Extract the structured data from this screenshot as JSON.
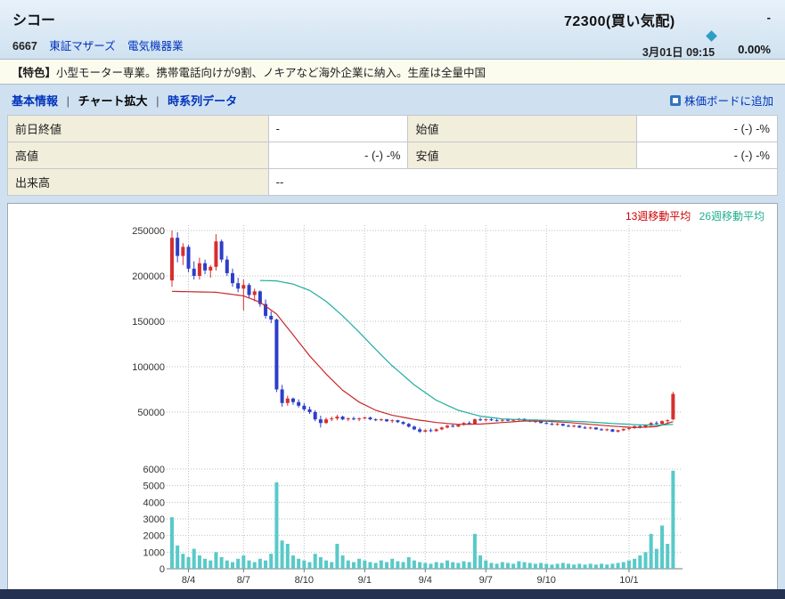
{
  "header": {
    "name": "シコー",
    "code": "6667",
    "market": "東証マザーズ",
    "industry": "電気機器業",
    "price": "72300(買い気配)",
    "change": "-",
    "datetime": "3月01日 09:15",
    "change_percent": "0.00%",
    "quote_marker_color": "#2e9ec4"
  },
  "feature": {
    "label": "【特色】",
    "text": "小型モーター専業。携帯電話向けが9割、ノキアなど海外企業に納入。生産は全量中国"
  },
  "tab_separator": "|",
  "tabs": [
    {
      "label": "基本情報",
      "active": false
    },
    {
      "label": "チャート拡大",
      "active": true
    },
    {
      "label": "時系列データ",
      "active": false
    }
  ],
  "add_board_label": "株価ボードに追加",
  "quote_table": {
    "rows": {
      "r1": {
        "label1": "前日終値",
        "value1": "-",
        "label2": "始値",
        "value2": "- (-) -%"
      },
      "r2": {
        "label1": "高値",
        "value1": "- (-) -%",
        "label2": "安値",
        "value2": "- (-) -%"
      },
      "r3": {
        "label1": "出来高",
        "value1": "--"
      }
    }
  },
  "chart_data": {
    "type": "candlestick_with_volume",
    "period": "weekly",
    "legend": [
      {
        "label": "13週移動平均",
        "color": "#cc0000"
      },
      {
        "label": "26週移動平均",
        "color": "#1fae8e"
      }
    ],
    "price_axis": {
      "ticks": [
        250000,
        200000,
        150000,
        100000,
        50000
      ],
      "top_value": 250000,
      "unit_per_tick": 50000
    },
    "volume_axis": {
      "ticks": [
        6000,
        5000,
        4000,
        3000,
        2000,
        1000,
        0
      ],
      "max": 6000
    },
    "x_ticks": [
      {
        "index": 3,
        "label": "8/4"
      },
      {
        "index": 13,
        "label": "8/7"
      },
      {
        "index": 24,
        "label": "8/10"
      },
      {
        "index": 35,
        "label": "9/1"
      },
      {
        "index": 46,
        "label": "9/4"
      },
      {
        "index": 57,
        "label": "9/7"
      },
      {
        "index": 68,
        "label": "9/10"
      },
      {
        "index": 83,
        "label": "10/1"
      }
    ],
    "colors": {
      "up": "#d62f2f",
      "down": "#2c3ec8",
      "ma13": "#c62828",
      "ma26": "#1fae9e",
      "volume": "#59c9c9",
      "grid": "#b9bec4",
      "axis": "#777777"
    },
    "candles": [
      [
        195000,
        250000,
        188000,
        242000,
        3100
      ],
      [
        242000,
        248000,
        215000,
        222000,
        1400
      ],
      [
        222000,
        236000,
        212000,
        232000,
        900
      ],
      [
        232000,
        234000,
        204000,
        208000,
        700
      ],
      [
        208000,
        216000,
        196000,
        200000,
        1200
      ],
      [
        200000,
        220000,
        196000,
        214000,
        800
      ],
      [
        214000,
        218000,
        202000,
        206000,
        600
      ],
      [
        206000,
        212000,
        198000,
        210000,
        500
      ],
      [
        210000,
        246000,
        206000,
        238000,
        1000
      ],
      [
        238000,
        240000,
        215000,
        218000,
        700
      ],
      [
        218000,
        222000,
        200000,
        203000,
        500
      ],
      [
        203000,
        208000,
        188000,
        192000,
        400
      ],
      [
        192000,
        198000,
        182000,
        186000,
        600
      ],
      [
        186000,
        196000,
        162000,
        190000,
        800
      ],
      [
        190000,
        192000,
        176000,
        179000,
        500
      ],
      [
        179000,
        186000,
        172000,
        183000,
        400
      ],
      [
        183000,
        184000,
        166000,
        169000,
        600
      ],
      [
        169000,
        174000,
        153000,
        156000,
        500
      ],
      [
        156000,
        161000,
        148000,
        152000,
        900
      ],
      [
        152000,
        153000,
        72000,
        75000,
        5200
      ],
      [
        75000,
        80000,
        56000,
        60000,
        1700
      ],
      [
        60000,
        68000,
        57000,
        65000,
        1500
      ],
      [
        65000,
        66000,
        58000,
        61000,
        800
      ],
      [
        61000,
        64000,
        55000,
        57000,
        600
      ],
      [
        57000,
        60000,
        51000,
        53000,
        500
      ],
      [
        53000,
        56000,
        48000,
        50000,
        400
      ],
      [
        50000,
        52000,
        40000,
        42000,
        900
      ],
      [
        42000,
        46000,
        33000,
        38000,
        700
      ],
      [
        38000,
        44000,
        37000,
        42000,
        500
      ],
      [
        42000,
        45000,
        40000,
        43000,
        400
      ],
      [
        43000,
        47000,
        41000,
        45000,
        1500
      ],
      [
        45000,
        46000,
        41000,
        42000,
        800
      ],
      [
        42000,
        44000,
        40000,
        43000,
        500
      ],
      [
        43000,
        45000,
        41000,
        42000,
        400
      ],
      [
        42000,
        44000,
        40000,
        43000,
        600
      ],
      [
        43000,
        45000,
        42000,
        44000,
        500
      ],
      [
        44000,
        45000,
        41000,
        42000,
        400
      ],
      [
        42000,
        43000,
        40000,
        41000,
        350
      ],
      [
        41000,
        43000,
        40000,
        42000,
        500
      ],
      [
        42000,
        42500,
        39000,
        40000,
        400
      ],
      [
        40000,
        42000,
        38000,
        41000,
        600
      ],
      [
        41000,
        41500,
        38000,
        39000,
        450
      ],
      [
        39000,
        40000,
        36000,
        37000,
        400
      ],
      [
        37000,
        38000,
        33000,
        34000,
        700
      ],
      [
        34000,
        35000,
        30000,
        31000,
        500
      ],
      [
        31000,
        33000,
        27000,
        28500,
        400
      ],
      [
        28500,
        31000,
        27500,
        30000,
        350
      ],
      [
        30000,
        32000,
        28000,
        29000,
        300
      ],
      [
        29000,
        32000,
        28500,
        31000,
        400
      ],
      [
        31000,
        34000,
        30000,
        33000,
        350
      ],
      [
        33000,
        36000,
        32000,
        35000,
        500
      ],
      [
        35000,
        37000,
        33000,
        34000,
        400
      ],
      [
        34000,
        37000,
        33500,
        36000,
        350
      ],
      [
        36000,
        39000,
        35000,
        38000,
        450
      ],
      [
        38000,
        40000,
        36000,
        37000,
        400
      ],
      [
        37000,
        43000,
        36500,
        42000,
        2100
      ],
      [
        42000,
        44000,
        40000,
        41000,
        800
      ],
      [
        41000,
        43000,
        39500,
        42000,
        500
      ],
      [
        42000,
        43500,
        40000,
        41000,
        350
      ],
      [
        41000,
        42500,
        39500,
        40500,
        300
      ],
      [
        40500,
        42000,
        39000,
        41500,
        400
      ],
      [
        41500,
        43000,
        40000,
        40500,
        350
      ],
      [
        40500,
        42000,
        39500,
        41500,
        300
      ],
      [
        41500,
        43500,
        40500,
        42500,
        450
      ],
      [
        42500,
        43000,
        40000,
        40500,
        400
      ],
      [
        40500,
        42000,
        39000,
        39500,
        350
      ],
      [
        39500,
        41000,
        38000,
        40000,
        300
      ],
      [
        40000,
        41000,
        37500,
        38000,
        350
      ],
      [
        38000,
        39500,
        36500,
        37000,
        300
      ],
      [
        37000,
        38500,
        35500,
        36000,
        250
      ],
      [
        36000,
        38000,
        35000,
        37000,
        300
      ],
      [
        37000,
        37500,
        34500,
        35000,
        350
      ],
      [
        35000,
        36500,
        33500,
        34000,
        300
      ],
      [
        34000,
        36000,
        33000,
        35000,
        250
      ],
      [
        35000,
        35500,
        32500,
        33000,
        300
      ],
      [
        33000,
        34500,
        31500,
        32000,
        250
      ],
      [
        32000,
        34000,
        31000,
        33000,
        300
      ],
      [
        33000,
        33500,
        30500,
        31000,
        250
      ],
      [
        31000,
        32500,
        29500,
        30000,
        300
      ],
      [
        30000,
        32000,
        29000,
        31000,
        250
      ],
      [
        31000,
        31500,
        28000,
        28500,
        300
      ],
      [
        28500,
        30500,
        27500,
        30000,
        350
      ],
      [
        30000,
        32000,
        29000,
        31500,
        400
      ],
      [
        31500,
        33000,
        30000,
        32500,
        500
      ],
      [
        32500,
        35000,
        31500,
        34500,
        600
      ],
      [
        34500,
        36000,
        32000,
        33000,
        800
      ],
      [
        33000,
        36500,
        32500,
        36000,
        1000
      ],
      [
        36000,
        39000,
        34000,
        38000,
        2100
      ],
      [
        38000,
        40000,
        36000,
        37000,
        1200
      ],
      [
        37000,
        41000,
        36000,
        40000,
        2600
      ],
      [
        40000,
        42000,
        37000,
        41000,
        1500
      ],
      [
        42000,
        72300,
        41000,
        70000,
        5900
      ]
    ],
    "ma13_points": [
      [
        0,
        183000
      ],
      [
        8,
        182000
      ],
      [
        13,
        178000
      ],
      [
        16,
        171000
      ],
      [
        19,
        158000
      ],
      [
        22,
        135000
      ],
      [
        25,
        112000
      ],
      [
        28,
        92000
      ],
      [
        31,
        74000
      ],
      [
        34,
        61000
      ],
      [
        37,
        52000
      ],
      [
        40,
        46500
      ],
      [
        44,
        42000
      ],
      [
        48,
        38500
      ],
      [
        52,
        36500
      ],
      [
        56,
        36800
      ],
      [
        60,
        38500
      ],
      [
        64,
        40200
      ],
      [
        68,
        40000
      ],
      [
        72,
        38500
      ],
      [
        76,
        36500
      ],
      [
        80,
        34500
      ],
      [
        84,
        33000
      ],
      [
        88,
        34000
      ],
      [
        91,
        39500
      ]
    ],
    "ma26_points": [
      [
        16,
        195000
      ],
      [
        19,
        194500
      ],
      [
        22,
        191000
      ],
      [
        25,
        184000
      ],
      [
        28,
        172000
      ],
      [
        31,
        156000
      ],
      [
        34,
        138000
      ],
      [
        37,
        119000
      ],
      [
        40,
        101000
      ],
      [
        44,
        80000
      ],
      [
        48,
        63000
      ],
      [
        52,
        52000
      ],
      [
        56,
        45500
      ],
      [
        60,
        42500
      ],
      [
        64,
        41500
      ],
      [
        68,
        41000
      ],
      [
        72,
        40200
      ],
      [
        76,
        39000
      ],
      [
        80,
        37500
      ],
      [
        84,
        36200
      ],
      [
        88,
        35500
      ],
      [
        91,
        36500
      ]
    ]
  }
}
